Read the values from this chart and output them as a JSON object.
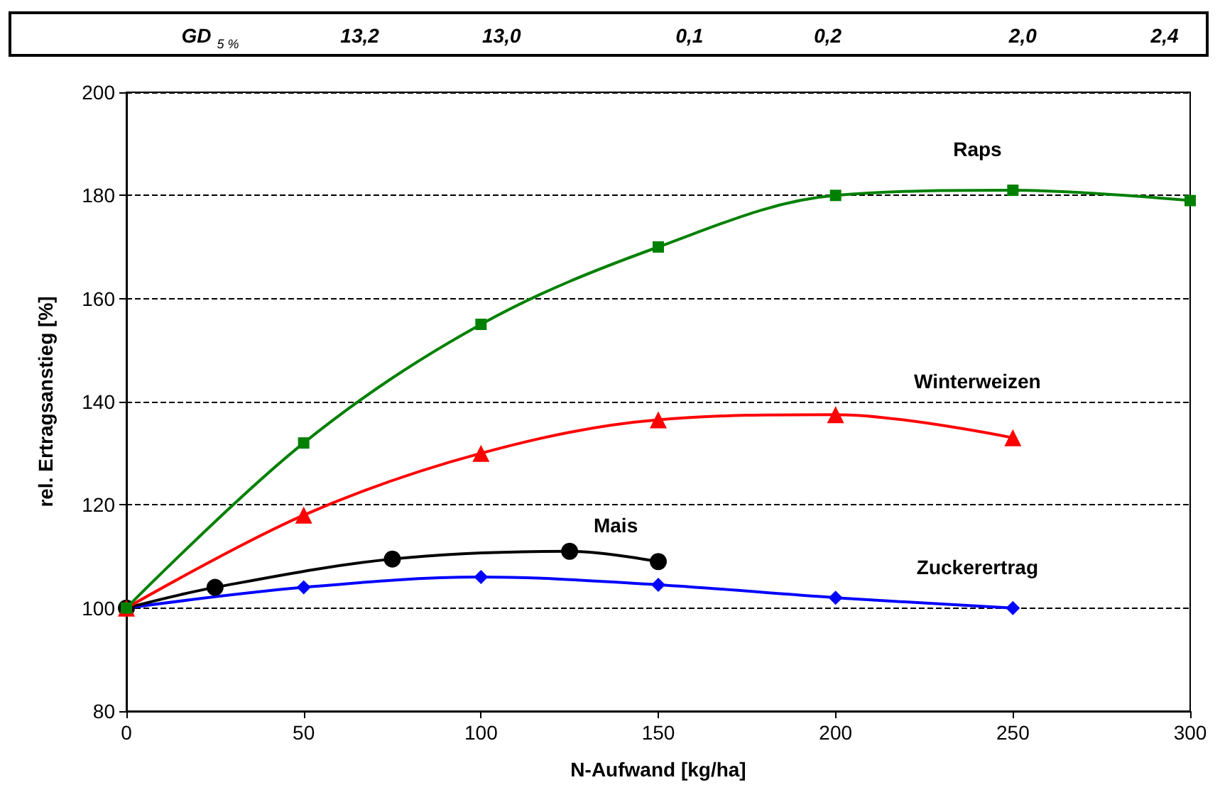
{
  "chart_data": {
    "type": "line",
    "xlabel": "N-Aufwand [kg/ha]",
    "ylabel": "rel. Ertragsanstieg [%]",
    "xlim": [
      0,
      300
    ],
    "xticks": [
      0,
      50,
      100,
      150,
      200,
      250,
      300
    ],
    "ylim": [
      80,
      200
    ],
    "yticks": [
      80,
      100,
      120,
      140,
      160,
      180,
      200
    ],
    "grid": "y",
    "legend": false,
    "annotations": [
      "GD $_{5 %}$",
      "13,2",
      "13,0",
      "0,1",
      "0,2",
      "2,0",
      "2,4"
    ],
    "series": [
      {
        "name": "Raps",
        "color": "#008000",
        "marker": "square",
        "x": [
          0,
          50,
          100,
          150,
          200,
          250,
          300
        ],
        "values": [
          100,
          132,
          155,
          170,
          180,
          181,
          179
        ]
      },
      {
        "name": "Winterweizen",
        "color": "#ff0000",
        "marker": "triangle",
        "x": [
          0,
          50,
          100,
          150,
          200,
          250
        ],
        "values": [
          100,
          118,
          130,
          136.5,
          137.5,
          133
        ]
      },
      {
        "name": "Mais",
        "color": "#000000",
        "marker": "circle",
        "x": [
          0,
          25,
          75,
          125,
          150
        ],
        "values": [
          100,
          104,
          109.5,
          111,
          109
        ]
      },
      {
        "name": "Zuckerertrag",
        "color": "#0000ff",
        "marker": "diamond",
        "x": [
          0,
          50,
          100,
          150,
          200,
          250
        ],
        "values": [
          100,
          104,
          106,
          104.5,
          102,
          100
        ]
      }
    ]
  }
}
